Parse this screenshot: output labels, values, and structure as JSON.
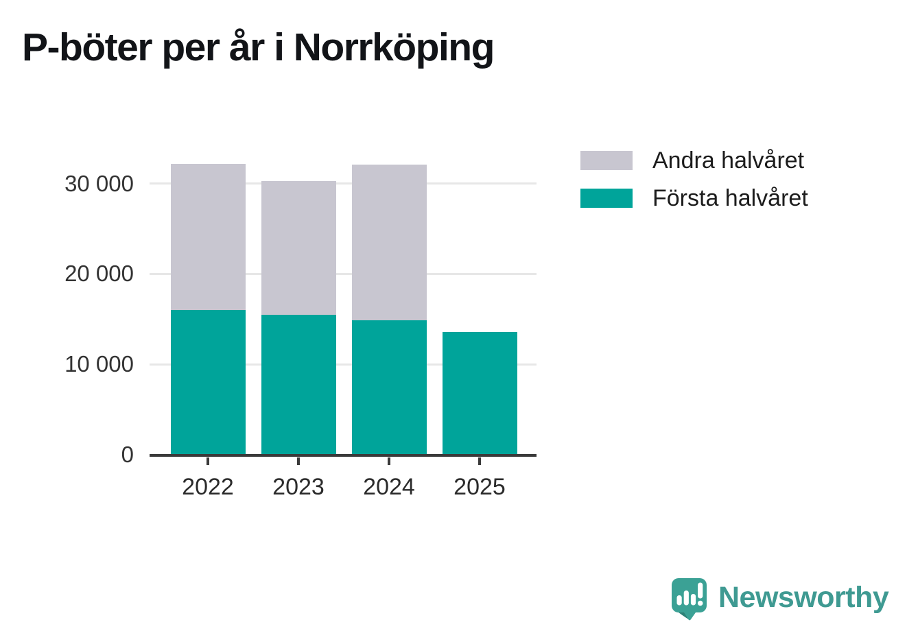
{
  "title": "P-böter per år i Norrköping",
  "chart_data": {
    "type": "bar",
    "stacked": true,
    "title": "P-böter per år i Norrköping",
    "xlabel": "",
    "ylabel": "",
    "categories": [
      "2022",
      "2023",
      "2024",
      "2025"
    ],
    "series": [
      {
        "name": "Första halvåret",
        "color": "#00a49a",
        "values": [
          16000,
          15500,
          14900,
          13600
        ]
      },
      {
        "name": "Andra halvåret",
        "color": "#c8c6d0",
        "values": [
          16200,
          14800,
          17200,
          0
        ]
      }
    ],
    "totals": [
      32200,
      30300,
      32100,
      13600
    ],
    "ylim": [
      0,
      33400
    ],
    "yticks": [
      0,
      10000,
      20000,
      30000
    ],
    "ytick_labels": [
      "0",
      "10 000",
      "20 000",
      "30 000"
    ],
    "grid": true,
    "legend_position": "right-top"
  },
  "legend": {
    "items": [
      {
        "label": "Andra halvåret",
        "color": "#c8c6d0"
      },
      {
        "label": "Första halvåret",
        "color": "#00a49a"
      }
    ]
  },
  "branding": {
    "logo_text": "Newsworthy",
    "logo_text_color": "#3f9a92",
    "logo_mark_color": "#3ba195",
    "logo_mark_shadow_color": "#2d8177"
  }
}
